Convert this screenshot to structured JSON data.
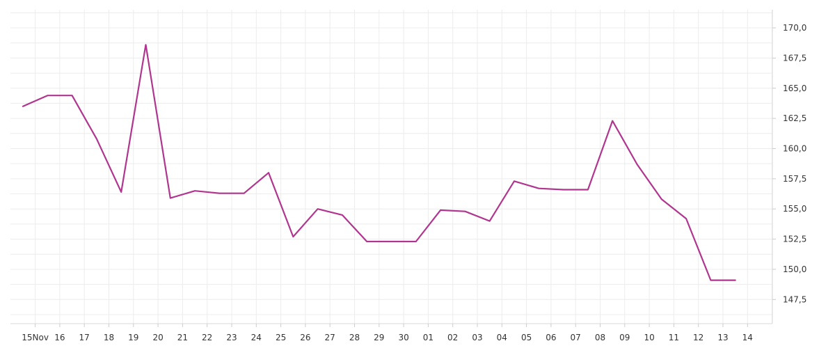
{
  "chart_data": {
    "type": "line",
    "title": "",
    "xlabel": "",
    "ylabel": "",
    "grid": true,
    "legend": "none",
    "x_tick_labels": [
      "15Nov",
      "16",
      "17",
      "18",
      "19",
      "20",
      "21",
      "22",
      "23",
      "24",
      "25",
      "26",
      "27",
      "28",
      "29",
      "30",
      "01",
      "02",
      "03",
      "04",
      "05",
      "06",
      "07",
      "08",
      "09",
      "10",
      "11",
      "12",
      "13",
      "14"
    ],
    "y_ticks": [
      "170,0",
      "167,5",
      "165,0",
      "162,5",
      "160,0",
      "157,5",
      "155,0",
      "152,5",
      "150,0",
      "147,5"
    ],
    "ylim": [
      145.5,
      171.5
    ],
    "line_color": "#b0358f",
    "series": [
      {
        "values": [
          163.5,
          164.4,
          164.4,
          160.8,
          156.4,
          168.6,
          155.9,
          156.5,
          156.3,
          156.3,
          158.0,
          152.7,
          155.0,
          154.5,
          152.3,
          152.3,
          152.3,
          154.9,
          154.8,
          154.0,
          157.3,
          156.7,
          156.6,
          156.6,
          162.3,
          158.7,
          155.8,
          154.2,
          149.1,
          149.1
        ]
      }
    ]
  }
}
